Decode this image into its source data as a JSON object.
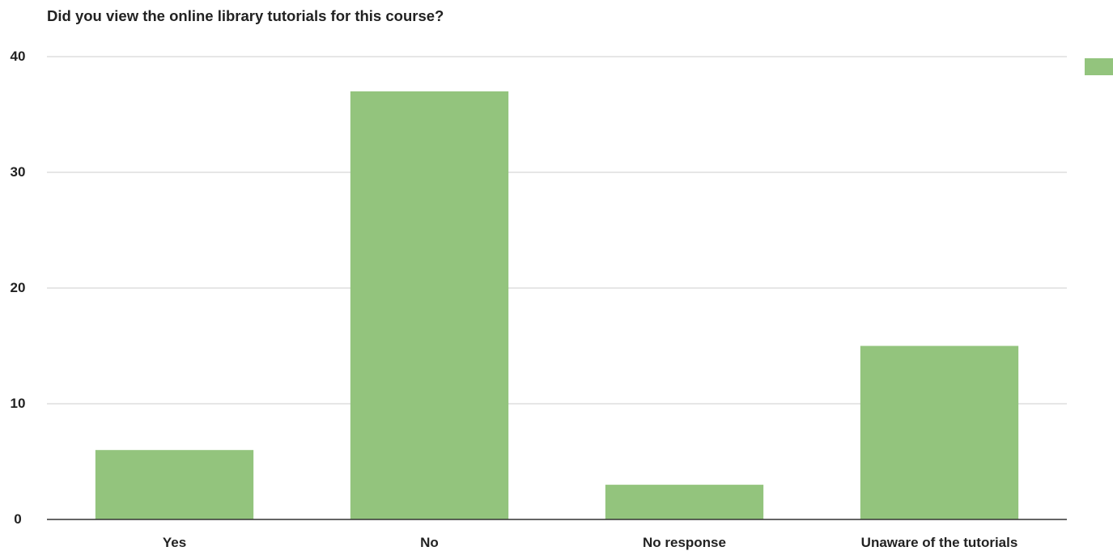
{
  "chart_data": {
    "type": "bar",
    "title": "Did you view the online library tutorials for this course?",
    "categories": [
      "Yes",
      "No",
      "No response",
      "Unaware of the tutorials"
    ],
    "series": [
      {
        "values": [
          6,
          37,
          3,
          15
        ]
      }
    ],
    "ylim": [
      0,
      40
    ],
    "yticks": [
      0,
      10,
      20,
      30,
      40
    ],
    "xlabel": "",
    "ylabel": "",
    "grid": true,
    "legend": "top-right",
    "colors": {
      "bar": "#93c47d",
      "grid": "#cccccc",
      "axis": "#333333",
      "text": "#222222"
    }
  }
}
